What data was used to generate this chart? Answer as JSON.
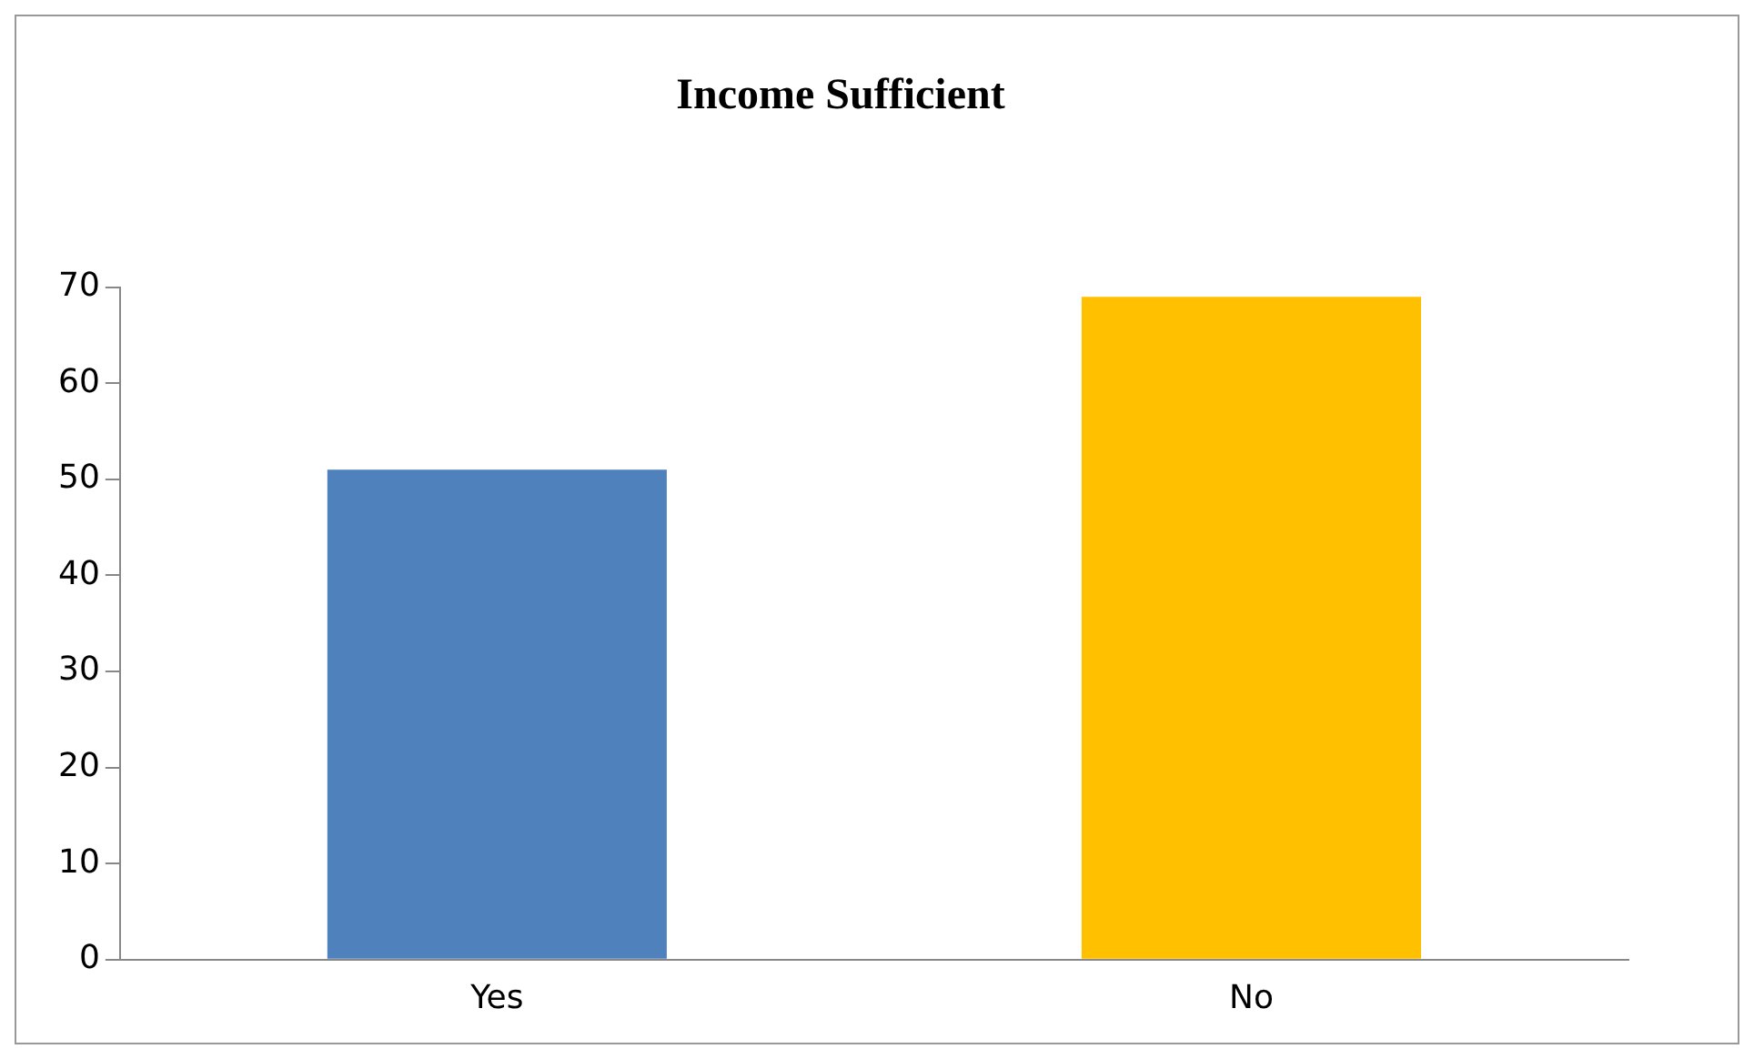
{
  "chart_data": {
    "type": "bar",
    "title": "Income Sufficient",
    "categories": [
      "Yes",
      "No"
    ],
    "values": [
      51,
      69
    ],
    "colors": [
      "#4f81bd",
      "#ffc000"
    ],
    "ylim": [
      0,
      70
    ],
    "yticks": [
      0,
      10,
      20,
      30,
      40,
      50,
      60,
      70
    ],
    "grid": false,
    "legend": false
  }
}
